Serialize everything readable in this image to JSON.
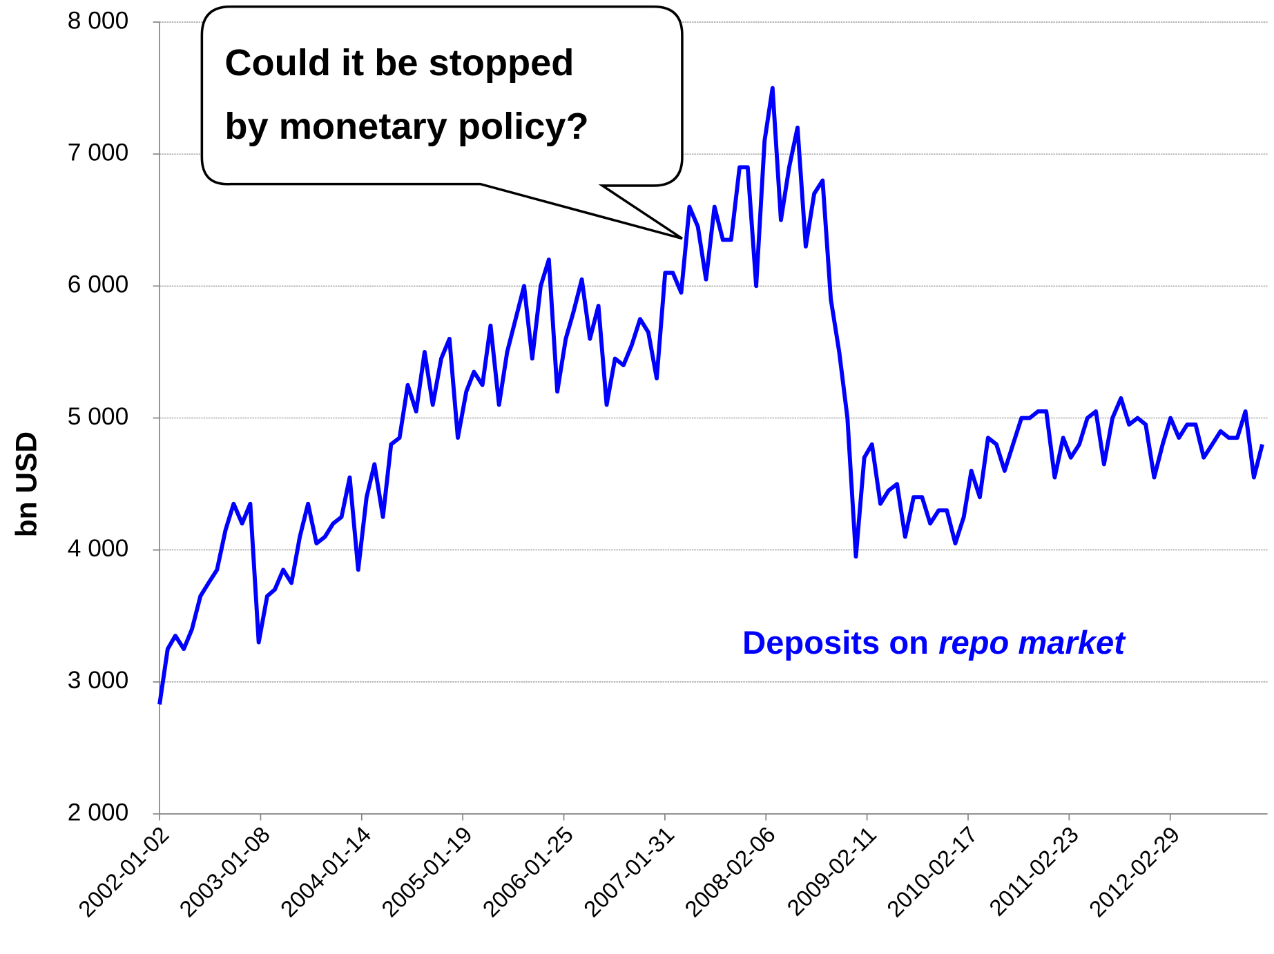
{
  "chart_data": {
    "type": "line",
    "ylabel": "bn USD",
    "annotation": [
      "Could it be stopped",
      "by monetary policy?"
    ],
    "label": {
      "text": "Deposits on",
      "italic": "repo market"
    },
    "color": "#0000ff",
    "grid": true,
    "xlim": [
      "2002-01-02",
      "2013-02-20"
    ],
    "xticks": [
      "2002-01-02",
      "2003-01-08",
      "2004-01-14",
      "2005-01-19",
      "2006-01-25",
      "2007-01-31",
      "2008-02-06",
      "2009-02-11",
      "2010-02-17",
      "2011-02-23",
      "2012-02-29"
    ],
    "ylim": [
      2000,
      8000
    ],
    "yticks": [
      {
        "value": 2000,
        "label": "2 000"
      },
      {
        "value": 3000,
        "label": "3 000"
      },
      {
        "value": 4000,
        "label": "4 000"
      },
      {
        "value": 5000,
        "label": "5 000"
      },
      {
        "value": 6000,
        "label": "6 000"
      },
      {
        "value": 7000,
        "label": "7 000"
      },
      {
        "value": 8000,
        "label": "8 000"
      }
    ],
    "x": [
      "2002-01-02",
      "2002-02-01",
      "2002-03-01",
      "2002-04-01",
      "2002-05-01",
      "2002-06-01",
      "2002-07-01",
      "2002-08-01",
      "2002-09-01",
      "2002-10-01",
      "2002-11-01",
      "2002-12-01",
      "2003-01-01",
      "2003-02-01",
      "2003-03-01",
      "2003-04-01",
      "2003-05-01",
      "2003-06-01",
      "2003-07-01",
      "2003-08-01",
      "2003-09-01",
      "2003-10-01",
      "2003-11-01",
      "2003-12-01",
      "2004-01-01",
      "2004-02-01",
      "2004-03-01",
      "2004-04-01",
      "2004-05-01",
      "2004-06-01",
      "2004-07-01",
      "2004-08-01",
      "2004-09-01",
      "2004-10-01",
      "2004-11-01",
      "2004-12-01",
      "2005-01-01",
      "2005-02-01",
      "2005-03-01",
      "2005-04-01",
      "2005-05-01",
      "2005-06-01",
      "2005-07-01",
      "2005-08-01",
      "2005-09-01",
      "2005-10-01",
      "2005-11-01",
      "2005-12-01",
      "2006-01-01",
      "2006-02-01",
      "2006-03-01",
      "2006-04-01",
      "2006-05-01",
      "2006-06-01",
      "2006-07-01",
      "2006-08-01",
      "2006-09-01",
      "2006-10-01",
      "2006-11-01",
      "2006-12-01",
      "2007-01-01",
      "2007-02-01",
      "2007-03-01",
      "2007-04-01",
      "2007-05-01",
      "2007-06-01",
      "2007-07-01",
      "2007-08-01",
      "2007-09-01",
      "2007-10-01",
      "2007-11-01",
      "2007-12-01",
      "2008-01-01",
      "2008-02-01",
      "2008-03-01",
      "2008-04-01",
      "2008-05-01",
      "2008-06-01",
      "2008-07-01",
      "2008-08-01",
      "2008-09-01",
      "2008-10-01",
      "2008-11-01",
      "2008-12-01",
      "2009-01-01",
      "2009-02-01",
      "2009-03-01",
      "2009-04-01",
      "2009-05-01",
      "2009-06-01",
      "2009-07-01",
      "2009-08-01",
      "2009-09-01",
      "2009-10-01",
      "2009-11-01",
      "2009-12-01",
      "2010-01-01",
      "2010-02-01",
      "2010-03-01",
      "2010-04-01",
      "2010-05-01",
      "2010-06-01",
      "2010-07-01",
      "2010-08-01",
      "2010-09-01",
      "2010-10-01",
      "2010-11-01",
      "2010-12-01",
      "2011-01-01",
      "2011-02-01",
      "2011-03-01",
      "2011-04-01",
      "2011-05-01",
      "2011-06-01",
      "2011-07-01",
      "2011-08-01",
      "2011-09-01",
      "2011-10-01",
      "2011-11-01",
      "2011-12-01",
      "2012-01-01",
      "2012-02-01",
      "2012-03-01",
      "2012-04-01",
      "2012-05-01",
      "2012-06-01",
      "2012-07-01",
      "2012-08-01",
      "2012-09-01",
      "2012-10-01",
      "2012-11-01",
      "2012-12-01",
      "2013-01-01",
      "2013-02-01"
    ],
    "values": [
      2830,
      3250,
      3350,
      3250,
      3400,
      3650,
      3750,
      3850,
      4150,
      4350,
      4200,
      4350,
      3300,
      3650,
      3700,
      3850,
      3750,
      4100,
      4350,
      4050,
      4100,
      4200,
      4250,
      4550,
      3850,
      4400,
      4650,
      4250,
      4800,
      4850,
      5250,
      5050,
      5500,
      5100,
      5450,
      5600,
      4850,
      5200,
      5350,
      5250,
      5700,
      5100,
      5500,
      5750,
      6000,
      5450,
      6000,
      6200,
      5200,
      5600,
      5800,
      6050,
      5600,
      5850,
      5100,
      5450,
      5400,
      5550,
      5750,
      5650,
      5300,
      6100,
      6100,
      5950,
      6600,
      6450,
      6050,
      6600,
      6350,
      6350,
      6900,
      6900,
      6000,
      7100,
      7500,
      6500,
      6900,
      7200,
      6300,
      6700,
      6800,
      5900,
      5500,
      5000,
      3950,
      4700,
      4800,
      4350,
      4450,
      4500,
      4100,
      4400,
      4400,
      4200,
      4300,
      4300,
      4050,
      4250,
      4600,
      4400,
      4850,
      4800,
      4600,
      4800,
      5000,
      5000,
      5050,
      5050,
      4550,
      4850,
      4700,
      4800,
      5000,
      5050,
      4650,
      5000,
      5150,
      4950,
      5000,
      4950,
      4550,
      4800,
      5000,
      4850,
      4950,
      4950,
      4700,
      4800,
      4900,
      4850,
      4850,
      5050,
      4550,
      4800
    ]
  }
}
